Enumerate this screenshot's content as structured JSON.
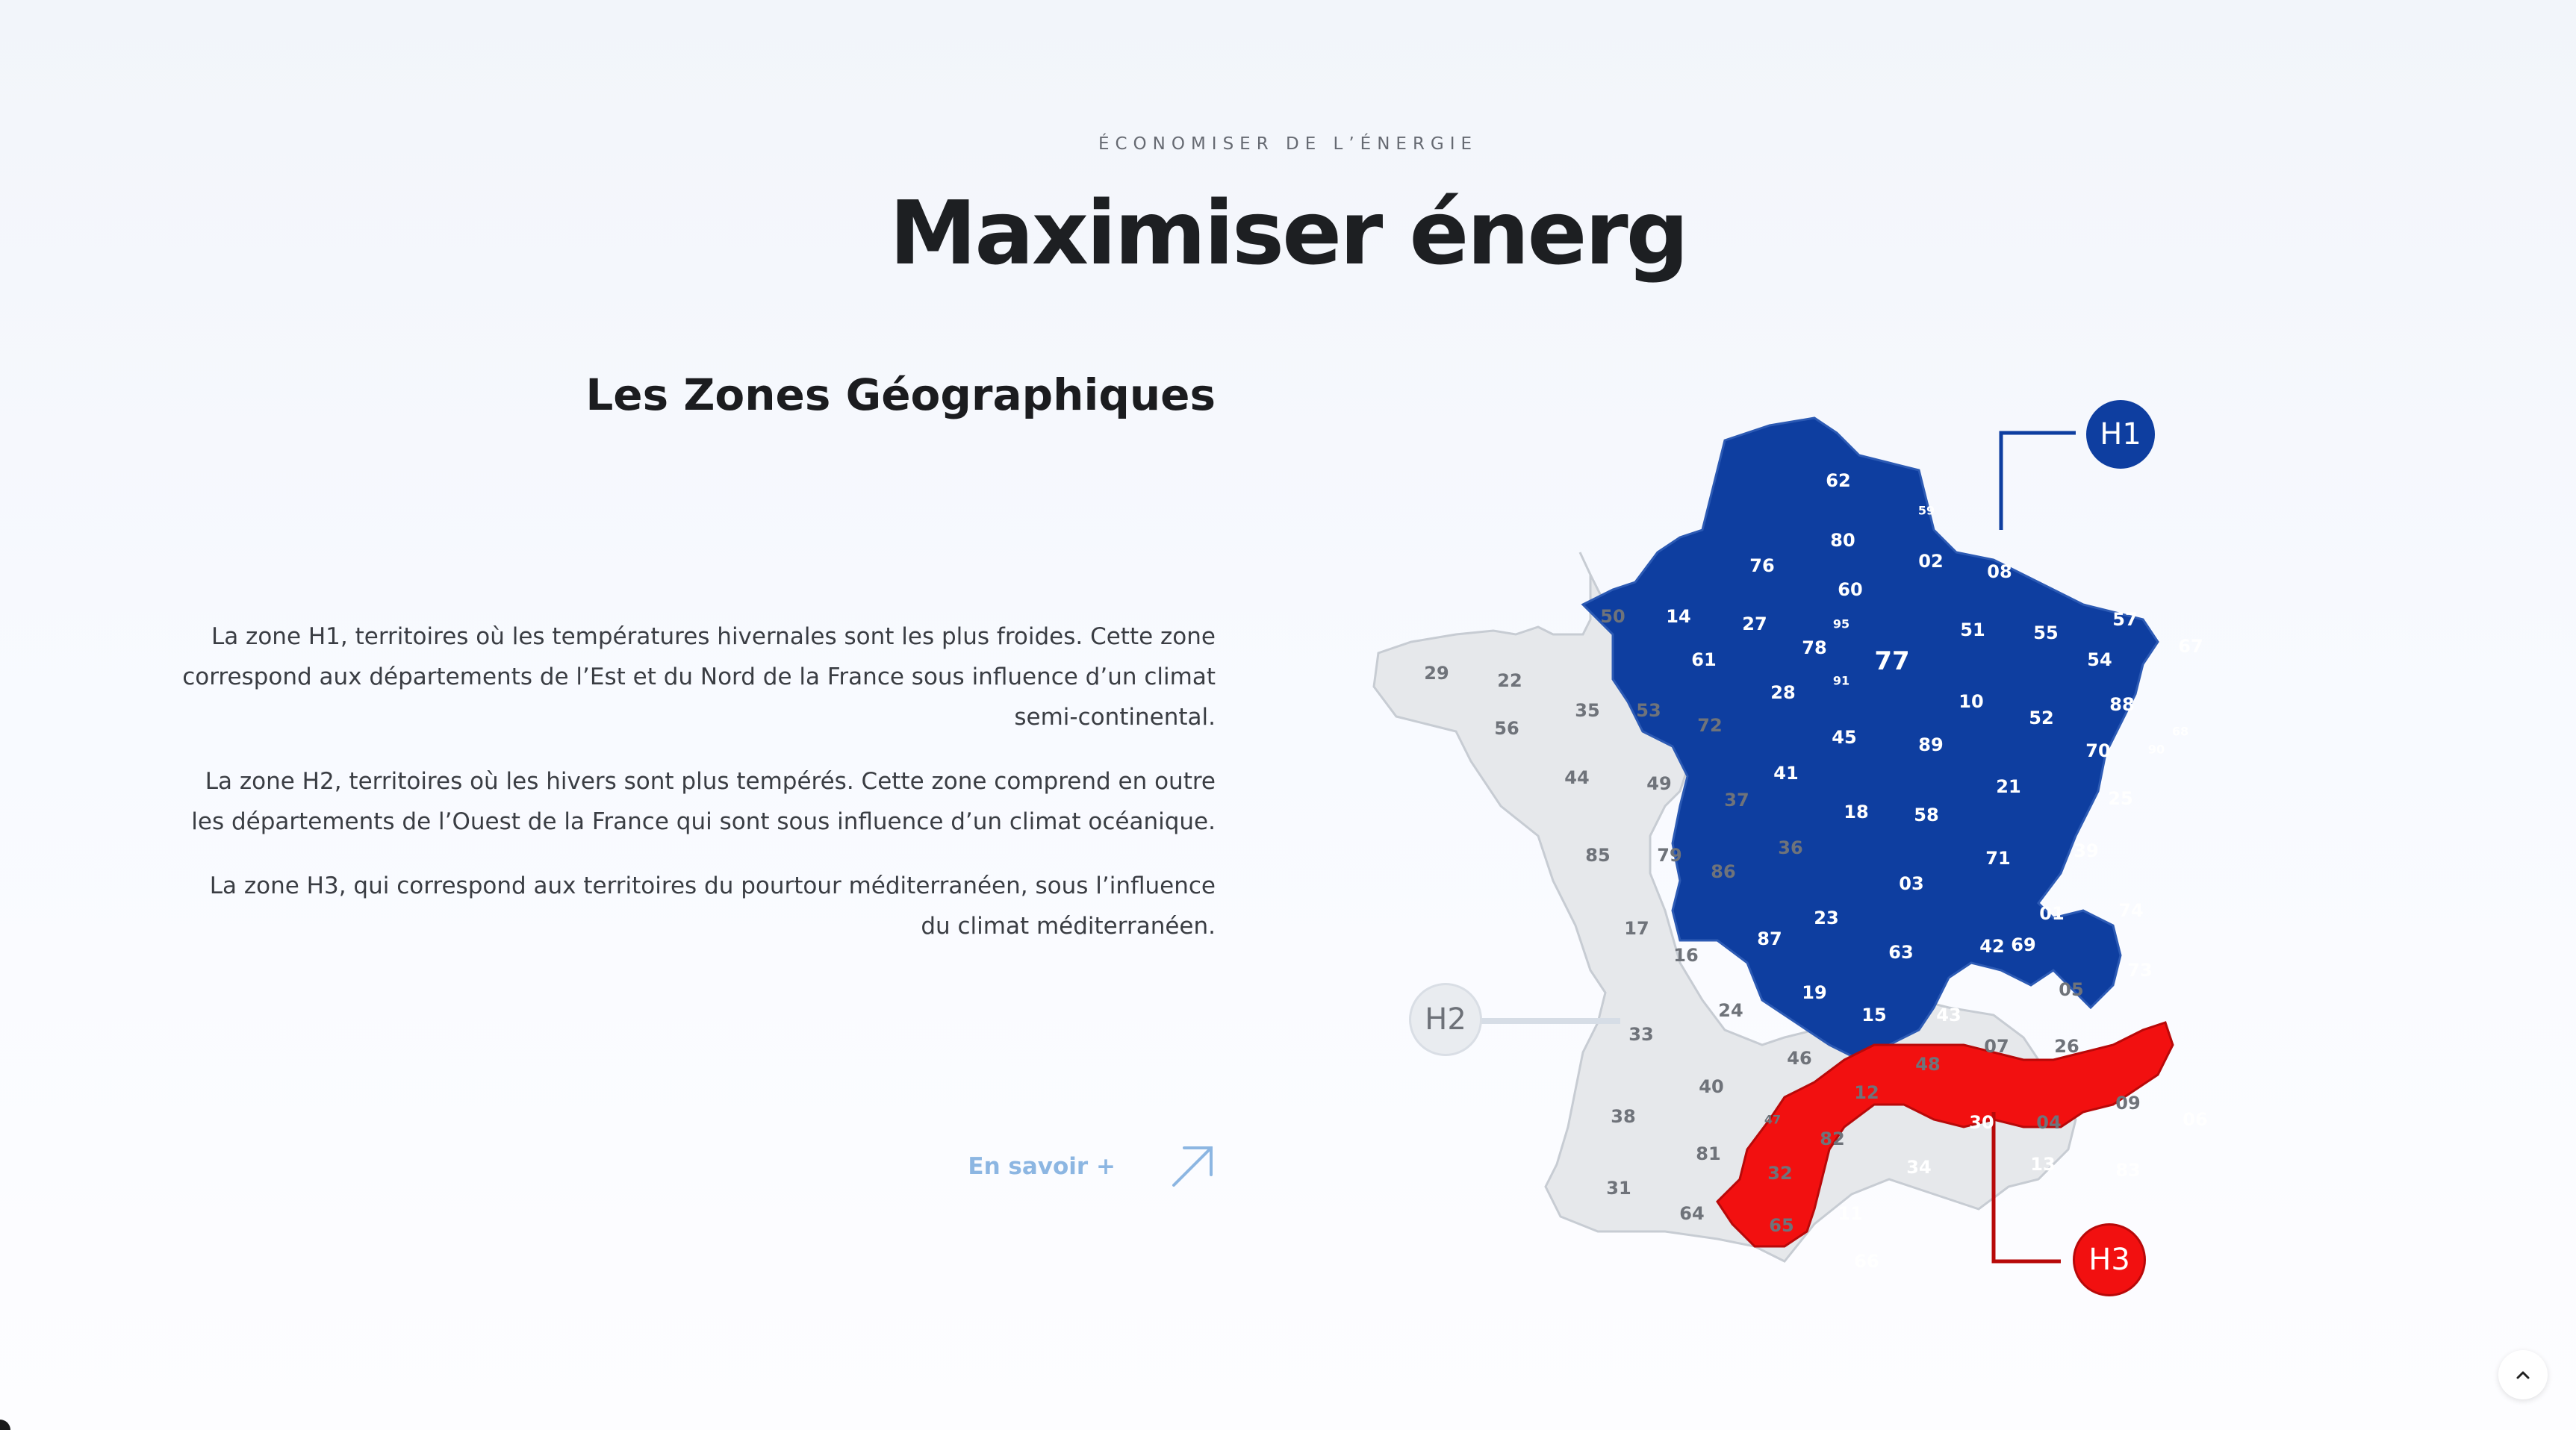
{
  "section": {
    "eyebrow": "ÉCONOMISER DE L’ÉNERGIE",
    "title": "Maximiser énerg"
  },
  "zones": {
    "title": "Les Zones Géographiques",
    "paragraphs": [
      "La zone H1, territoires où les températures hivernales sont les plus froides. Cette zone correspond aux départements de l’Est et du Nord de la France sous influence d’un climat semi-continental.",
      "La zone H2, territoires où les hivers sont plus tempérés. Cette zone comprend en outre les départements de l’Ouest de la France qui sont sous influence d’un climat océanique.",
      "La zone H3, qui correspond aux territoires du pourtour méditerranéen, sous l’influence du climat méditerranéen."
    ],
    "learn_more_label": "En savoir +"
  },
  "map": {
    "colors": {
      "H1": "#0e3ea0",
      "H2": "#e6e8eb",
      "H3": "#f21010"
    },
    "badges": [
      "H1",
      "H2",
      "H3"
    ],
    "departments": {
      "H1": [
        "62",
        "59",
        "80",
        "02",
        "08",
        "76",
        "60",
        "14",
        "27",
        "95",
        "78",
        "50",
        "61",
        "77",
        "91",
        "28",
        "45",
        "10",
        "51",
        "55",
        "54",
        "57",
        "67",
        "88",
        "68",
        "90",
        "52",
        "70",
        "89",
        "21",
        "25",
        "39",
        "58",
        "18",
        "41",
        "71",
        "03",
        "01",
        "74",
        "73",
        "69",
        "42",
        "63",
        "23",
        "87",
        "19",
        "15",
        "43"
      ],
      "H2": [
        "29",
        "22",
        "56",
        "35",
        "53",
        "72",
        "44",
        "49",
        "37",
        "85",
        "79",
        "86",
        "36",
        "17",
        "16",
        "33",
        "24",
        "46",
        "12",
        "48",
        "07",
        "26",
        "05",
        "38",
        "40",
        "47",
        "82",
        "81",
        "32",
        "31",
        "64",
        "65",
        "09",
        "04",
        "84"
      ],
      "H3": [
        "30",
        "34",
        "13",
        "83",
        "06",
        "11",
        "66"
      ]
    }
  },
  "icons": {
    "learn_more_arrow": "arrow-up-right-icon",
    "scroll_top": "chevron-up-icon"
  }
}
